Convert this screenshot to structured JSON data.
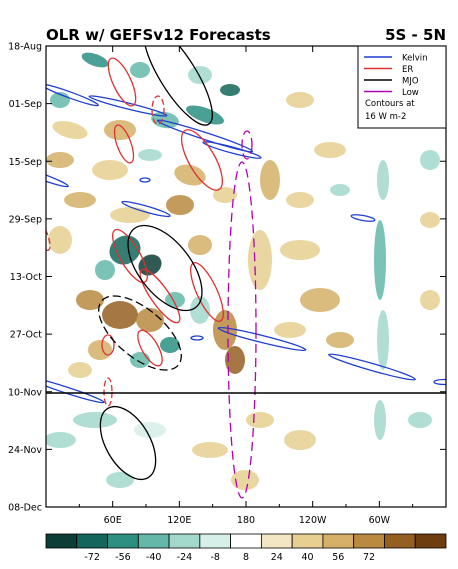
{
  "chart_data": {
    "type": "heatmap",
    "title": "OLR w/ GEFSv12 Forecasts",
    "region": "5S - 5N",
    "y_ticks": [
      "18-Aug",
      "01-Sep",
      "15-Sep",
      "29-Sep",
      "13-Oct",
      "27-Oct",
      "10-Nov",
      "24-Nov",
      "08-Dec"
    ],
    "x_ticks": [
      "60E",
      "120E",
      "180",
      "120W",
      "60W"
    ],
    "forecast_start": "10-Nov",
    "legend": {
      "entries": [
        {
          "label": "Kelvin",
          "color": "#1f3fd0",
          "style": "solid"
        },
        {
          "label": "ER",
          "color": "#e03030",
          "style": "solid"
        },
        {
          "label": "MJO",
          "color": "#000000",
          "style": "solid"
        },
        {
          "label": "Low",
          "color": "#b000b0",
          "style": "solid"
        }
      ],
      "note_line1": "Contours at",
      "note_line2": "16 W m-2",
      "placement": "top-right"
    },
    "colorbar": {
      "labels": [
        "-72",
        "-56",
        "-40",
        "-24",
        "-8",
        "8",
        "24",
        "40",
        "56",
        "72"
      ],
      "colors": [
        "#0c3d36",
        "#13665b",
        "#2c8f82",
        "#64b8aa",
        "#a3d8cc",
        "#d6efe8",
        "#ffffff",
        "#f2e6c4",
        "#e6cf91",
        "#d4b068",
        "#b98a3f",
        "#955f22",
        "#6e3d10"
      ]
    }
  }
}
